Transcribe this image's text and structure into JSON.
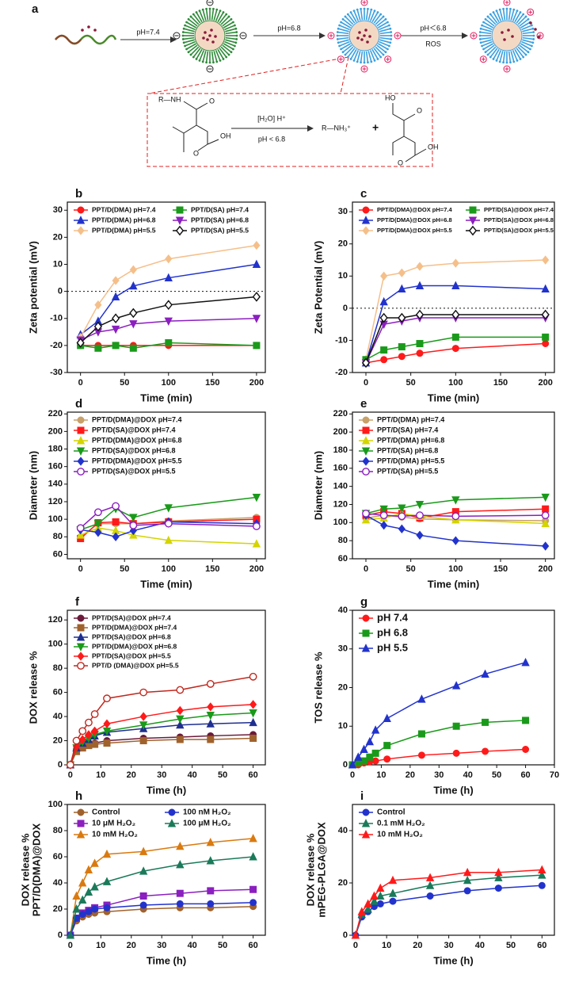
{
  "scheme": {
    "label": "a",
    "arrows": [
      "pH=7.4",
      "pH=6.8",
      "pH＜6.8"
    ],
    "arrow_note": "ROS",
    "reaction": {
      "reactant": [
        "R—NH",
        "O",
        "OH",
        "O"
      ],
      "conditions": [
        "[H₂O]  H⁺",
        "pH < 6.8"
      ],
      "product_amine": "R—NH₃⁺",
      "plus": "+",
      "product_acid": [
        "HO",
        "O",
        "OH",
        "O"
      ]
    }
  },
  "chart_data": [
    {
      "type": "scatter-line",
      "label": "b",
      "xlabel": "Time (min)",
      "ylabel": "Zeta potential (mV)",
      "x": [
        0,
        20,
        40,
        60,
        100,
        200
      ],
      "xlim": [
        -15,
        210
      ],
      "xticks": [
        0,
        50,
        100,
        150,
        200
      ],
      "ylim": [
        -30,
        33
      ],
      "yticks": [
        -30,
        -20,
        -10,
        0,
        10,
        20,
        30
      ],
      "reference_line": 0,
      "legend_columns": 2,
      "series": [
        {
          "name": "PPT/D(DMA) pH=7.4",
          "color": "#ff1a1a",
          "marker": "circle",
          "values": [
            -20,
            -20,
            -20,
            -20,
            -20,
            -20
          ]
        },
        {
          "name": "PPT/D(DMA) pH=6.8",
          "color": "#2233cc",
          "marker": "triangle",
          "values": [
            -16,
            -11,
            -2,
            2,
            5,
            10
          ]
        },
        {
          "name": "PPT/D(DMA) pH=5.5",
          "color": "#f5bf8a",
          "marker": "diamond",
          "values": [
            -17,
            -5,
            4,
            8,
            12,
            17
          ]
        },
        {
          "name": "PPT/D(SA) pH=7.4",
          "color": "#1a9a1a",
          "marker": "square",
          "values": [
            -20,
            -21,
            -20,
            -21,
            -19,
            -20
          ]
        },
        {
          "name": "PPT/D(SA) pH=6.8",
          "color": "#8b1fbf",
          "marker": "triangle-down",
          "values": [
            -18,
            -15,
            -14,
            -12,
            -11,
            -10
          ]
        },
        {
          "name": "PPT/D(SA) pH=5.5",
          "color": "#111111",
          "marker": "open-diamond",
          "values": [
            -19,
            -13,
            -10,
            -8,
            -5,
            -2
          ]
        }
      ]
    },
    {
      "type": "scatter-line",
      "label": "c",
      "xlabel": "Time (min)",
      "ylabel": "Zeta Potential (mV)",
      "x": [
        0,
        20,
        40,
        60,
        100,
        200
      ],
      "xlim": [
        -15,
        210
      ],
      "xticks": [
        0,
        50,
        100,
        150,
        200
      ],
      "ylim": [
        -20,
        33
      ],
      "yticks": [
        -20,
        -10,
        0,
        10,
        20,
        30
      ],
      "reference_line": 0,
      "legend_columns": 2,
      "series": [
        {
          "name": "PPT/D(DMA)@DOX pH=7.4",
          "color": "#ff1a1a",
          "marker": "circle",
          "values": [
            -17,
            -16,
            -15,
            -14,
            -12.5,
            -11
          ]
        },
        {
          "name": "PPT/D(DMA)@DOX pH=6.8",
          "color": "#2233cc",
          "marker": "triangle",
          "values": [
            -17,
            2,
            6,
            7,
            7,
            6
          ]
        },
        {
          "name": "PPT/D(DMA)@DOX pH=5.5",
          "color": "#f5bf8a",
          "marker": "diamond",
          "values": [
            -16,
            10,
            11,
            13,
            14,
            15
          ]
        },
        {
          "name": "PPT/D(SA)@DOX pH=7.4",
          "color": "#1a9a1a",
          "marker": "square",
          "values": [
            -16,
            -13,
            -12,
            -11,
            -9,
            -9
          ]
        },
        {
          "name": "PPT/D(SA)@DOX pH=6.8",
          "color": "#8b1fbf",
          "marker": "triangle-down",
          "values": [
            -17,
            -5,
            -4,
            -3,
            -3,
            -3
          ]
        },
        {
          "name": "PPT/D(SA)@DOX pH=5.5",
          "color": "#111111",
          "marker": "open-diamond",
          "values": [
            -17,
            -3,
            -3,
            -2,
            -2,
            -2
          ]
        }
      ]
    },
    {
      "type": "scatter-line",
      "label": "d",
      "xlabel": "Time (min)",
      "ylabel": "Diameter (nm)",
      "x": [
        0,
        20,
        40,
        60,
        100,
        200
      ],
      "xlim": [
        -15,
        210
      ],
      "xticks": [
        0,
        50,
        100,
        150,
        200
      ],
      "ylim": [
        55,
        222
      ],
      "yticks": [
        60,
        80,
        100,
        120,
        140,
        160,
        180,
        200,
        220
      ],
      "legend_columns": 1,
      "series": [
        {
          "name": "PPT/D(DMA)@DOX pH=7.4",
          "color": "#c8a06a",
          "marker": "circle",
          "values": [
            80,
            95,
            95,
            95,
            98,
            102
          ]
        },
        {
          "name": "PPT/D(SA)@DOX pH=7.4",
          "color": "#ff1a1a",
          "marker": "square",
          "values": [
            78,
            96,
            97,
            95,
            97,
            100
          ]
        },
        {
          "name": "PPT/D(DMA)@DOX pH=6.8",
          "color": "#d4d400",
          "marker": "triangle",
          "values": [
            82,
            90,
            87,
            82,
            76,
            72
          ]
        },
        {
          "name": "PPT/D(SA)@DOX pH=6.8",
          "color": "#1a9a1a",
          "marker": "triangle-down",
          "values": [
            88,
            95,
            112,
            102,
            113,
            125
          ]
        },
        {
          "name": "PPT/D(DMA)@DOX pH=5.5",
          "color": "#2233cc",
          "marker": "diamond",
          "values": [
            88,
            85,
            80,
            87,
            97,
            95
          ]
        },
        {
          "name": "PPT/D(SA)@DOX pH=5.5",
          "color": "#8b1fbf",
          "marker": "open-circle",
          "values": [
            90,
            108,
            115,
            93,
            95,
            92
          ]
        }
      ]
    },
    {
      "type": "scatter-line",
      "label": "e",
      "xlabel": "Time (min)",
      "ylabel": "Diameter (nm)",
      "x": [
        0,
        20,
        40,
        60,
        100,
        200
      ],
      "xlim": [
        -15,
        210
      ],
      "xticks": [
        0,
        50,
        100,
        150,
        200
      ],
      "ylim": [
        60,
        222
      ],
      "yticks": [
        60,
        80,
        100,
        120,
        140,
        160,
        180,
        200,
        220
      ],
      "legend_columns": 1,
      "series": [
        {
          "name": "PPT/D(DMA) pH=7.4",
          "color": "#c8a06a",
          "marker": "circle",
          "values": [
            105,
            108,
            106,
            104,
            103,
            102
          ]
        },
        {
          "name": "PPT/D(SA) pH=7.4",
          "color": "#ff1a1a",
          "marker": "square",
          "values": [
            108,
            112,
            110,
            105,
            112,
            115
          ]
        },
        {
          "name": "PPT/D(DMA) pH=6.8",
          "color": "#d4d400",
          "marker": "triangle",
          "values": [
            103,
            105,
            110,
            107,
            103,
            99
          ]
        },
        {
          "name": "PPT/D(SA) pH=6.8",
          "color": "#1a9a1a",
          "marker": "triangle-down",
          "values": [
            110,
            115,
            116,
            120,
            125,
            128
          ]
        },
        {
          "name": "PPT/D(DMA) pH=5.5",
          "color": "#2233cc",
          "marker": "diamond",
          "values": [
            108,
            97,
            93,
            86,
            80,
            74
          ]
        },
        {
          "name": "PPT/D(SA) pH=5.5",
          "color": "#8b1fbf",
          "marker": "open-circle",
          "values": [
            110,
            108,
            107,
            108,
            107,
            108
          ]
        }
      ]
    },
    {
      "type": "scatter-line",
      "label": "f",
      "xlabel": "Time (h)",
      "ylabel": "DOX  release %",
      "x": [
        0,
        2,
        4,
        6,
        8,
        12,
        24,
        36,
        46,
        60
      ],
      "xlim": [
        -1,
        64
      ],
      "xticks": [
        0,
        10,
        20,
        30,
        40,
        50,
        60
      ],
      "ylim": [
        0,
        128
      ],
      "yticks": [
        0,
        20,
        40,
        60,
        80,
        100,
        120
      ],
      "legend_columns": 1,
      "series": [
        {
          "name": "PPT/D(SA)@DOX pH=7.4",
          "color": "#6b1a3a",
          "marker": "circle",
          "values": [
            0,
            12,
            15,
            17,
            18,
            20,
            22,
            23,
            24,
            25
          ]
        },
        {
          "name": "PPT/D(DMA)@DOX pH=7.4",
          "color": "#a0622d",
          "marker": "square",
          "values": [
            0,
            11,
            14,
            16,
            17,
            18,
            20,
            21,
            21,
            22
          ]
        },
        {
          "name": "PPT/D(SA)@DOX pH=6.8",
          "color": "#1f2f8f",
          "marker": "triangle",
          "values": [
            0,
            14,
            18,
            21,
            24,
            27,
            30,
            33,
            34,
            35
          ]
        },
        {
          "name": "PPT/D(DMA)@DOX pH=6.8",
          "color": "#1a9a1a",
          "marker": "triangle-down",
          "values": [
            0,
            14,
            19,
            22,
            25,
            28,
            33,
            38,
            41,
            43
          ]
        },
        {
          "name": "PPT/D(SA)@DOX pH=5.5",
          "color": "#ff1a1a",
          "marker": "diamond",
          "values": [
            0,
            15,
            21,
            25,
            28,
            34,
            40,
            45,
            48,
            50
          ]
        },
        {
          "name": "PPT/D (DMA)@DOX pH=5.5",
          "color": "#c0281e",
          "marker": "open-circle",
          "values": [
            0,
            20,
            28,
            35,
            42,
            55,
            60,
            62,
            67,
            73
          ]
        }
      ]
    },
    {
      "type": "scatter-line",
      "label": "g",
      "xlabel": "Time (h)",
      "ylabel": "TOS release %",
      "x": [
        0,
        2,
        4,
        6,
        8,
        12,
        24,
        36,
        46,
        60
      ],
      "xlim": [
        0,
        70
      ],
      "xticks": [
        0,
        10,
        20,
        30,
        40,
        50,
        60,
        70
      ],
      "ylim": [
        0,
        40
      ],
      "yticks": [
        0,
        10,
        20,
        30,
        40
      ],
      "legend_columns": 1,
      "series": [
        {
          "name": "pH 7.4",
          "color": "#ff1a1a",
          "marker": "circle",
          "values": [
            0,
            0,
            0.5,
            0.8,
            1,
            1.5,
            2.5,
            3,
            3.5,
            4
          ]
        },
        {
          "name": "pH 6.8",
          "color": "#1a9a1a",
          "marker": "square",
          "values": [
            0,
            0.5,
            1,
            2,
            3,
            5,
            8,
            10,
            11,
            11.5
          ]
        },
        {
          "name": "pH 5.5",
          "color": "#2233cc",
          "marker": "triangle",
          "values": [
            0,
            2,
            4,
            6,
            9,
            12,
            17,
            20.5,
            23.5,
            26.5
          ]
        }
      ]
    },
    {
      "type": "scatter-line",
      "label": "h",
      "xlabel": "Time (h)",
      "ylabel": [
        "DOX release %",
        "PPT/D(DMA)@DOX"
      ],
      "x": [
        0,
        2,
        4,
        6,
        8,
        12,
        24,
        36,
        46,
        60
      ],
      "xlim": [
        -1,
        64
      ],
      "xticks": [
        0,
        10,
        20,
        30,
        40,
        50,
        60
      ],
      "ylim": [
        0,
        100
      ],
      "yticks": [
        0,
        20,
        40,
        60,
        80,
        100
      ],
      "legend_columns": 2,
      "series": [
        {
          "name": "Control",
          "color": "#a0622d",
          "marker": "circle",
          "values": [
            0,
            11,
            14,
            16,
            17,
            18,
            20,
            21,
            21,
            22
          ]
        },
        {
          "name": "10 μM H₂O₂",
          "color": "#8b1fbf",
          "marker": "square",
          "values": [
            0,
            13,
            17,
            19,
            21,
            23,
            30,
            32,
            34,
            35
          ]
        },
        {
          "name": "10 mM H₂O₂",
          "color": "#d97a10",
          "marker": "triangle",
          "values": [
            0,
            30,
            40,
            50,
            55,
            62,
            64,
            68,
            71,
            74
          ]
        },
        {
          "name": "100 nM H₂O₂",
          "color": "#2233cc",
          "marker": "circle",
          "values": [
            0,
            13,
            16,
            18,
            20,
            21,
            23,
            24,
            24,
            25
          ]
        },
        {
          "name": "100 μM H₂O₂",
          "color": "#1a7a5a",
          "marker": "triangle",
          "values": [
            0,
            20,
            27,
            33,
            37,
            41,
            49,
            54,
            57,
            60
          ]
        }
      ]
    },
    {
      "type": "scatter-line",
      "label": "i",
      "xlabel": "Time (h)",
      "ylabel": [
        "DOX release %",
        "mPEG-PLGA@DOX"
      ],
      "x": [
        0,
        2,
        4,
        6,
        8,
        12,
        24,
        36,
        46,
        60
      ],
      "xlim": [
        -1,
        64
      ],
      "xticks": [
        0,
        10,
        20,
        30,
        40,
        50,
        60
      ],
      "ylim": [
        0,
        50
      ],
      "yticks": [
        0,
        20,
        40
      ],
      "legend_columns": 1,
      "series": [
        {
          "name": "Control",
          "color": "#2233cc",
          "marker": "circle",
          "values": [
            0,
            7,
            9,
            11,
            12,
            13,
            15,
            17,
            18,
            19
          ]
        },
        {
          "name": "0.1 mM H₂O₂",
          "color": "#1a7a5a",
          "marker": "triangle",
          "values": [
            0,
            8,
            10,
            13,
            15,
            16,
            19,
            21,
            22,
            23
          ]
        },
        {
          "name": "10 mM H₂O₂",
          "color": "#ff1a1a",
          "marker": "triangle",
          "values": [
            0,
            9,
            12,
            15,
            18,
            21,
            22,
            24,
            24,
            25
          ]
        }
      ]
    }
  ]
}
